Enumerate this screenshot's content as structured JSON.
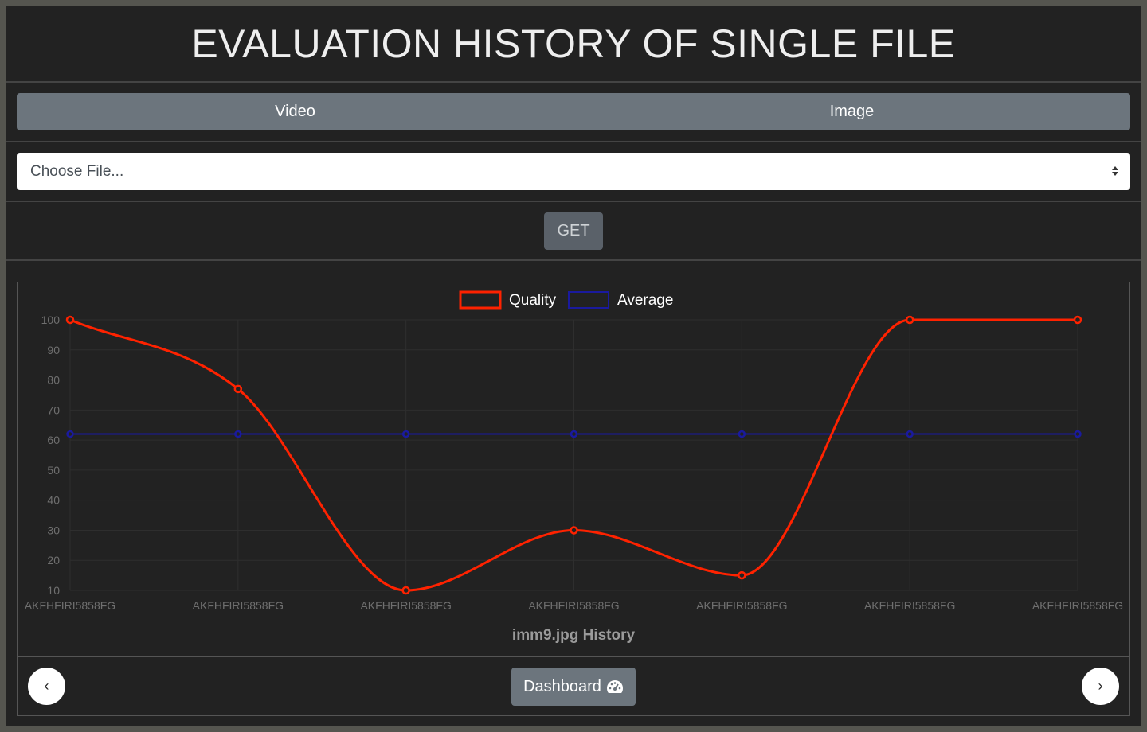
{
  "header": {
    "title": "EVALUATION HISTORY OF SINGLE FILE"
  },
  "tabs": [
    {
      "label": "Video"
    },
    {
      "label": "Image"
    }
  ],
  "file_select": {
    "selected": "Choose File..."
  },
  "get_button": {
    "label": "GET"
  },
  "footer": {
    "prev": "‹",
    "next": "›",
    "dashboard_label": "Dashboard"
  },
  "colors": {
    "quality": "#ff2200",
    "average": "#1a1a9e"
  },
  "chart_data": {
    "type": "line",
    "title": "imm9.jpg History",
    "categories": [
      "AKFHFIRI5858FG",
      "AKFHFIRI5858FG",
      "AKFHFIRI5858FG",
      "AKFHFIRI5858FG",
      "AKFHFIRI5858FG",
      "AKFHFIRI5858FG",
      "AKFHFIRI5858FG"
    ],
    "series": [
      {
        "name": "Quality",
        "values": [
          100,
          77,
          10,
          30,
          15,
          100,
          100
        ]
      },
      {
        "name": "Average",
        "values": [
          62,
          62,
          62,
          62,
          62,
          62,
          62
        ]
      }
    ],
    "yticks": [
      10,
      20,
      30,
      40,
      50,
      60,
      70,
      80,
      90,
      100
    ],
    "ylim": [
      10,
      100
    ],
    "grid": true,
    "legend": "top-center"
  }
}
